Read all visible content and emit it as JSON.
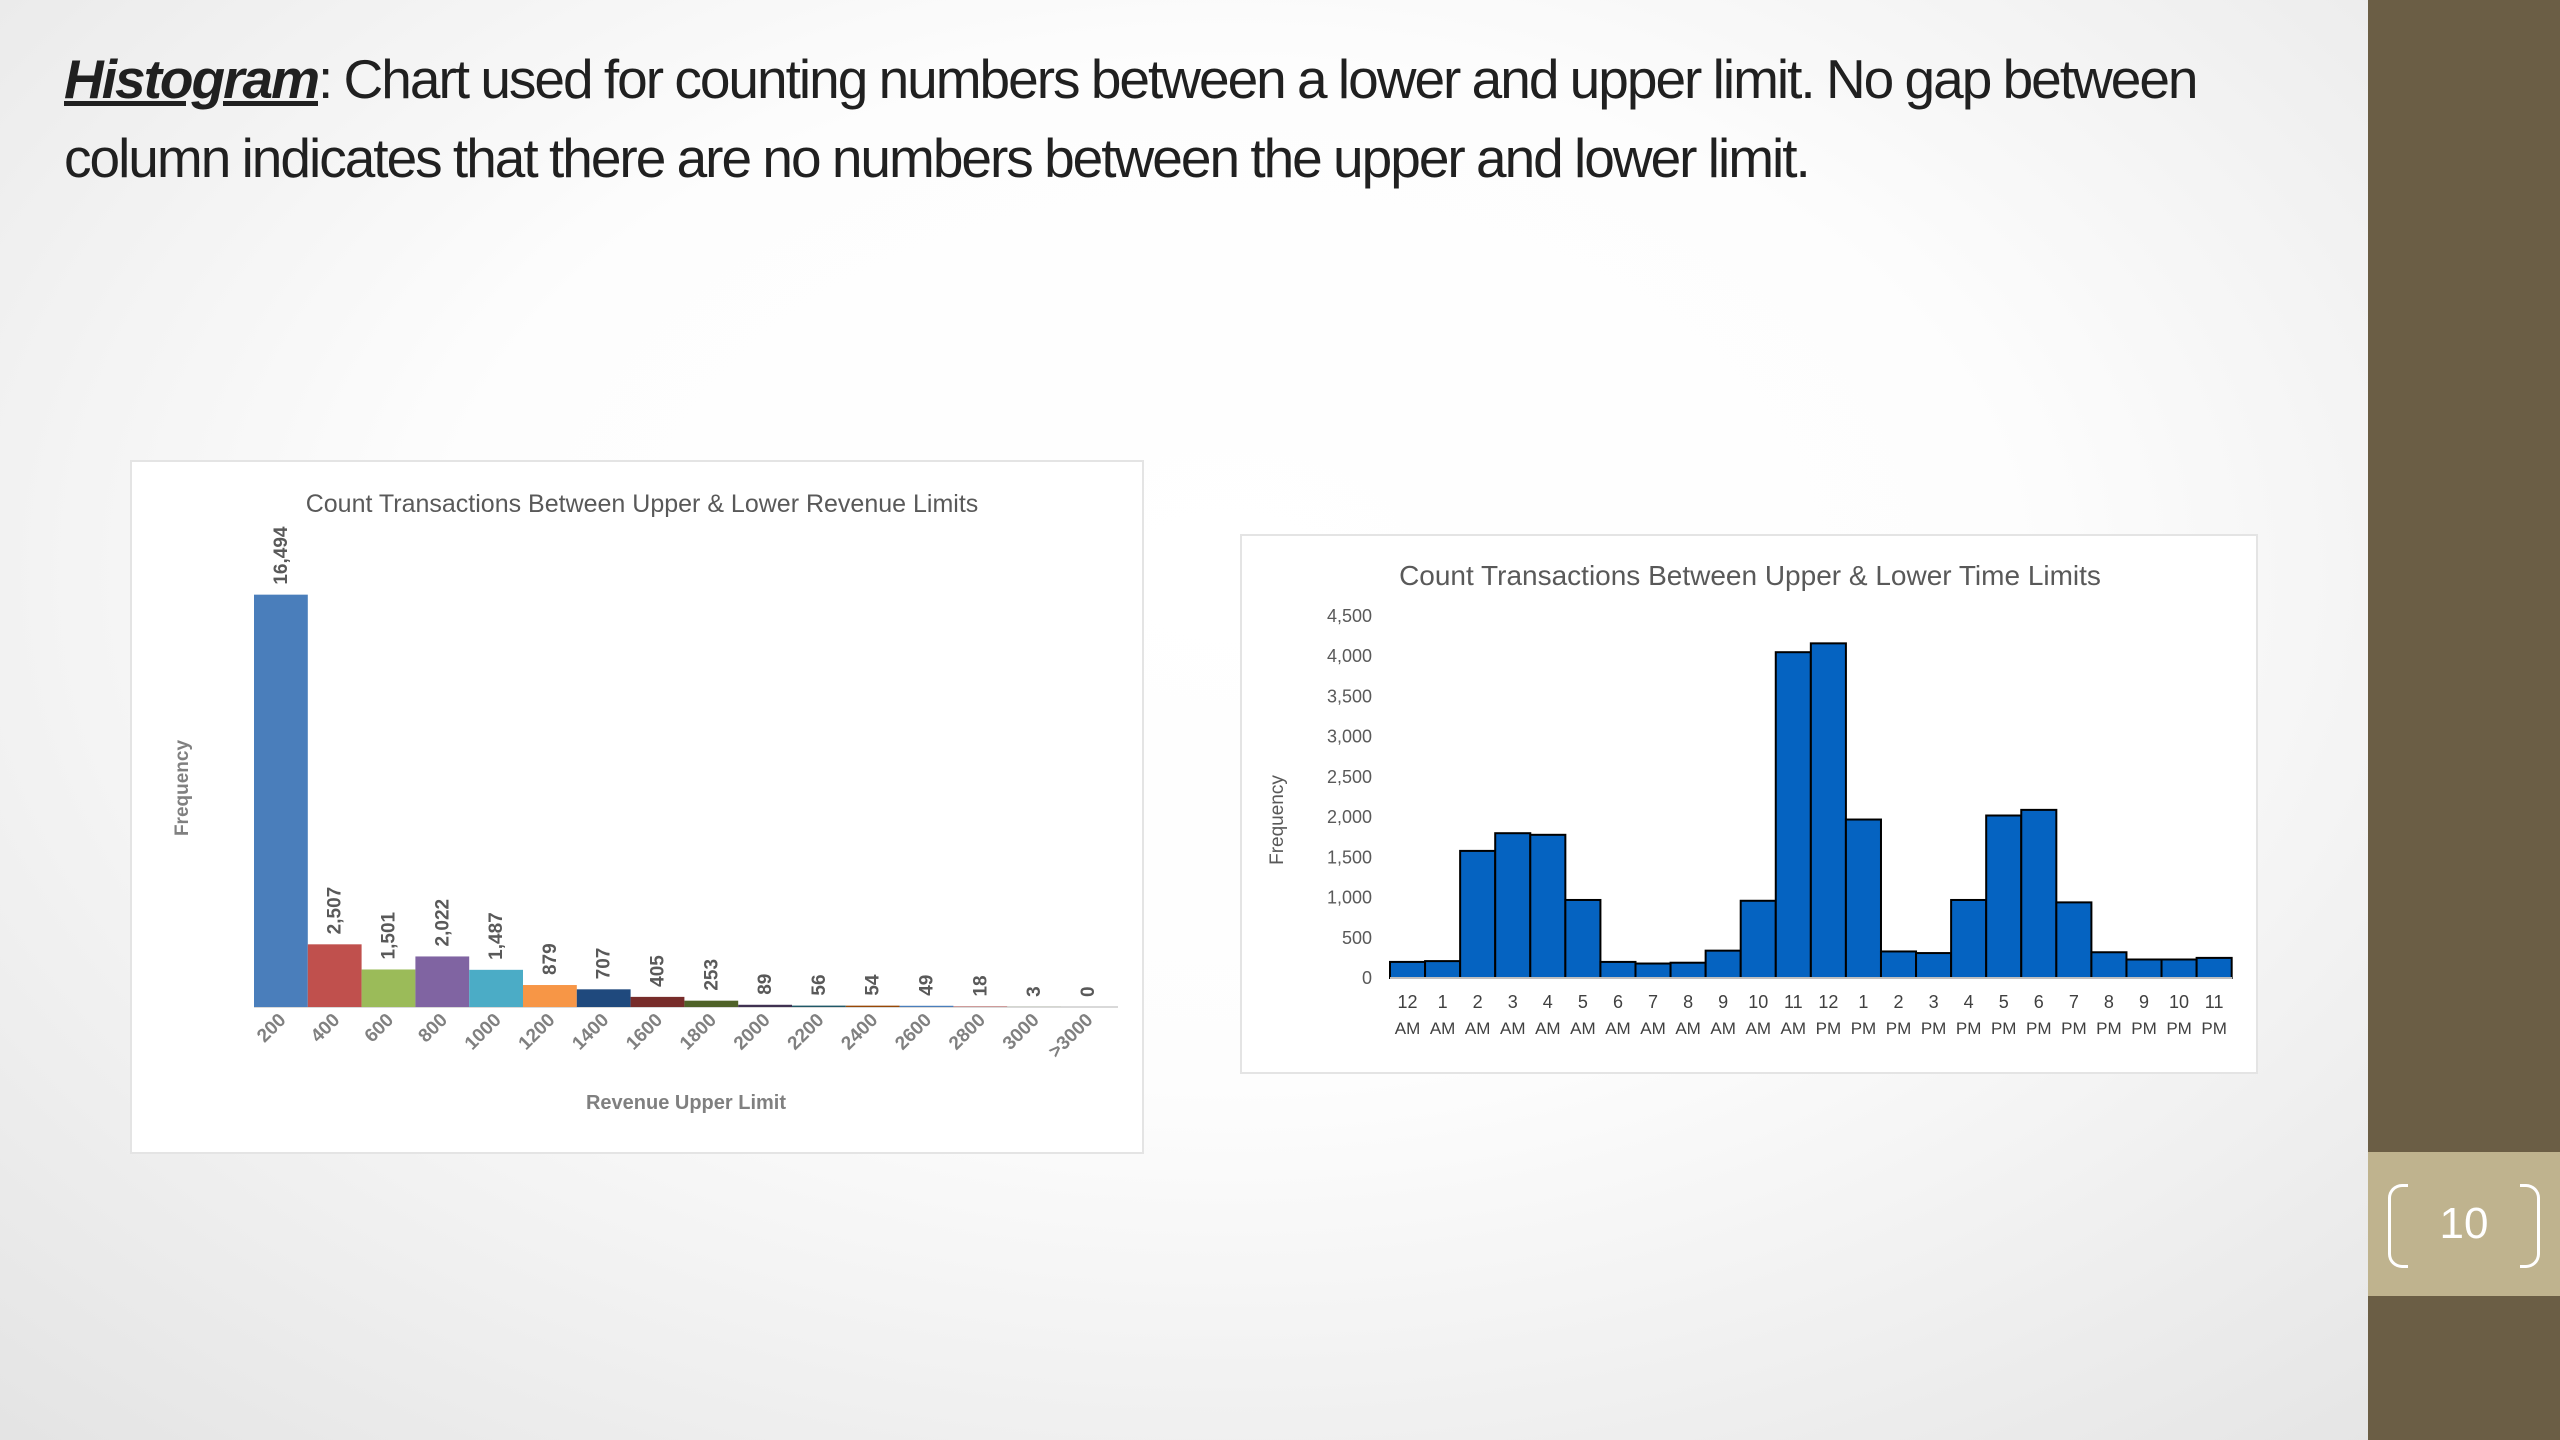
{
  "heading": {
    "term": "Histogram",
    "text": ": Chart used for counting numbers between a lower and upper limit. No gap between column indicates that there are no numbers between the upper and lower limit."
  },
  "slide": {
    "page_number": "10"
  },
  "colors": {
    "sidebar": "#6b5e45",
    "page_box": "#bfb38e",
    "time_bars": "#0563c1"
  },
  "chart_data": [
    {
      "type": "bar",
      "title": "Count Transactions Between Upper & Lower Revenue Limits",
      "xlabel": "Revenue Upper Limit",
      "ylabel": "Frequency",
      "categories": [
        "200",
        "400",
        "600",
        "800",
        "1000",
        "1200",
        "1400",
        "1600",
        "1800",
        "2000",
        "2200",
        "2400",
        "2600",
        "2800",
        "3000",
        ">3000"
      ],
      "values": [
        16494,
        2507,
        1501,
        2022,
        1487,
        879,
        707,
        405,
        253,
        89,
        56,
        54,
        49,
        18,
        3,
        0
      ],
      "data_labels": [
        "16,494",
        "2,507",
        "1,501",
        "2,022",
        "1,487",
        "879",
        "707",
        "405",
        "253",
        "89",
        "56",
        "54",
        "49",
        "18",
        "3",
        "0"
      ],
      "colors": [
        "#4a7ebb",
        "#c0504d",
        "#9bbb59",
        "#8064a2",
        "#4bacc6",
        "#f79646",
        "#1f497d",
        "#772c2a",
        "#4f6228",
        "#3f3151",
        "#205867",
        "#974806",
        "#4a7ebb",
        "#c0504d",
        "#9bbb59",
        "#8064a2"
      ],
      "ylim": [
        0,
        18000
      ],
      "grid": false,
      "gap": "none"
    },
    {
      "type": "bar",
      "title": "Count Transactions Between Upper & Lower Time Limits",
      "xlabel": "",
      "ylabel": "Frequency",
      "categories": [
        {
          "hour": "12",
          "period": "AM"
        },
        {
          "hour": "1",
          "period": "AM"
        },
        {
          "hour": "2",
          "period": "AM"
        },
        {
          "hour": "3",
          "period": "AM"
        },
        {
          "hour": "4",
          "period": "AM"
        },
        {
          "hour": "5",
          "period": "AM"
        },
        {
          "hour": "6",
          "period": "AM"
        },
        {
          "hour": "7",
          "period": "AM"
        },
        {
          "hour": "8",
          "period": "AM"
        },
        {
          "hour": "9",
          "period": "AM"
        },
        {
          "hour": "10",
          "period": "AM"
        },
        {
          "hour": "11",
          "period": "AM"
        },
        {
          "hour": "12",
          "period": "PM"
        },
        {
          "hour": "1",
          "period": "PM"
        },
        {
          "hour": "2",
          "period": "PM"
        },
        {
          "hour": "3",
          "period": "PM"
        },
        {
          "hour": "4",
          "period": "PM"
        },
        {
          "hour": "5",
          "period": "PM"
        },
        {
          "hour": "6",
          "period": "PM"
        },
        {
          "hour": "7",
          "period": "PM"
        },
        {
          "hour": "8",
          "period": "PM"
        },
        {
          "hour": "9",
          "period": "PM"
        },
        {
          "hour": "10",
          "period": "PM"
        },
        {
          "hour": "11",
          "period": "PM"
        }
      ],
      "values": [
        200,
        210,
        1580,
        1800,
        1780,
        970,
        200,
        180,
        190,
        340,
        960,
        4050,
        4160,
        1970,
        330,
        310,
        970,
        2020,
        2090,
        940,
        320,
        230,
        230,
        250
      ],
      "yticks": [
        "0",
        "500",
        "1,000",
        "1,500",
        "2,000",
        "2,500",
        "3,000",
        "3,500",
        "4,000",
        "4,500"
      ],
      "ylim": [
        0,
        4500
      ],
      "grid": false,
      "gap": "none"
    }
  ]
}
